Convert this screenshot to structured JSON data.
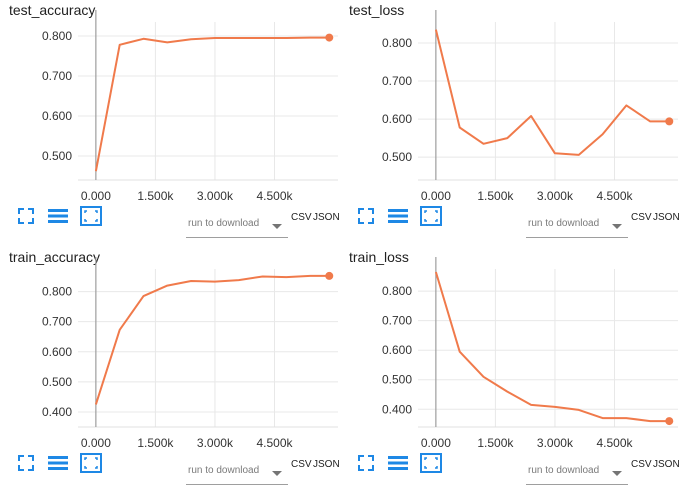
{
  "icons": {
    "expand": "fullscreen-icon",
    "data_toggle": "list-icon",
    "fit_domain": "fit-domain-icon"
  },
  "colors": {
    "series": "#f07a4b",
    "icon_blue": "#1e88e5"
  },
  "download": {
    "label": "run to download",
    "csv": "CSV",
    "json": "JSON"
  },
  "chart_data": [
    {
      "type": "line",
      "title": "test_accuracy",
      "xlabel": "",
      "ylabel": "",
      "xlim": [
        -450,
        6100
      ],
      "ylim": [
        0.44,
        0.835
      ],
      "x_ticks": [
        "0.000",
        "1.500k",
        "3.000k",
        "4.500k"
      ],
      "x_tick_values": [
        0,
        1500,
        3000,
        4500
      ],
      "y_ticks": [
        "0.500",
        "0.600",
        "0.700",
        "0.800"
      ],
      "y_tick_values": [
        0.5,
        0.6,
        0.7,
        0.8
      ],
      "x": [
        0,
        600,
        1200,
        1800,
        2400,
        3000,
        3600,
        4200,
        4800,
        5400,
        5880
      ],
      "values": [
        0.462,
        0.778,
        0.793,
        0.784,
        0.792,
        0.795,
        0.795,
        0.795,
        0.795,
        0.796,
        0.796
      ],
      "grid": true
    },
    {
      "type": "line",
      "title": "test_loss",
      "xlabel": "",
      "ylabel": "",
      "xlim": [
        -450,
        6100
      ],
      "ylim": [
        0.44,
        0.855
      ],
      "x_ticks": [
        "0.000",
        "1.500k",
        "3.000k",
        "4.500k"
      ],
      "x_tick_values": [
        0,
        1500,
        3000,
        4500
      ],
      "y_ticks": [
        "0.500",
        "0.600",
        "0.700",
        "0.800"
      ],
      "y_tick_values": [
        0.5,
        0.6,
        0.7,
        0.8
      ],
      "x": [
        0,
        600,
        1200,
        1800,
        2400,
        3000,
        3600,
        4200,
        4800,
        5400,
        5880
      ],
      "values": [
        0.835,
        0.578,
        0.535,
        0.55,
        0.608,
        0.51,
        0.506,
        0.56,
        0.636,
        0.594,
        0.594
      ],
      "grid": true
    },
    {
      "type": "line",
      "title": "train_accuracy",
      "xlabel": "",
      "ylabel": "",
      "xlim": [
        -450,
        6100
      ],
      "ylim": [
        0.35,
        0.875
      ],
      "x_ticks": [
        "0.000",
        "1.500k",
        "3.000k",
        "4.500k"
      ],
      "x_tick_values": [
        0,
        1500,
        3000,
        4500
      ],
      "y_ticks": [
        "0.400",
        "0.500",
        "0.600",
        "0.700",
        "0.800"
      ],
      "y_tick_values": [
        0.4,
        0.5,
        0.6,
        0.7,
        0.8
      ],
      "x": [
        0,
        600,
        1200,
        1800,
        2400,
        3000,
        3600,
        4200,
        4800,
        5400,
        5880
      ],
      "values": [
        0.425,
        0.673,
        0.785,
        0.82,
        0.835,
        0.833,
        0.838,
        0.85,
        0.848,
        0.852,
        0.852
      ],
      "grid": true
    },
    {
      "type": "line",
      "title": "train_loss",
      "xlabel": "",
      "ylabel": "",
      "xlim": [
        -450,
        6100
      ],
      "ylim": [
        0.34,
        0.875
      ],
      "x_ticks": [
        "0.000",
        "1.500k",
        "3.000k",
        "4.500k"
      ],
      "x_tick_values": [
        0,
        1500,
        3000,
        4500
      ],
      "y_ticks": [
        "0.400",
        "0.500",
        "0.600",
        "0.700",
        "0.800"
      ],
      "y_tick_values": [
        0.4,
        0.5,
        0.6,
        0.7,
        0.8
      ],
      "x": [
        0,
        600,
        1200,
        1800,
        2400,
        3000,
        3600,
        4200,
        4800,
        5400,
        5880
      ],
      "values": [
        0.865,
        0.595,
        0.51,
        0.46,
        0.415,
        0.408,
        0.398,
        0.37,
        0.37,
        0.36,
        0.36
      ],
      "grid": true
    }
  ]
}
